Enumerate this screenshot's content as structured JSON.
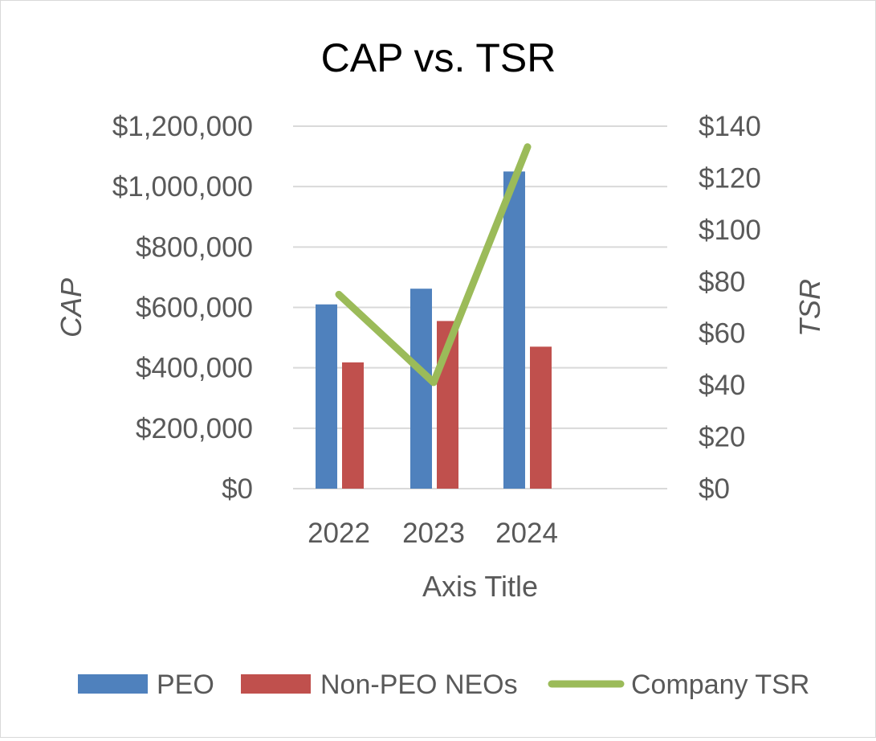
{
  "chart_data": {
    "type": "bar",
    "title": "CAP vs. TSR",
    "categories": [
      "2022",
      "2023",
      "2024"
    ],
    "xlabel": "Axis Title",
    "ylabel": "CAP",
    "y2label": "TSR",
    "ylim": [
      0,
      1200000
    ],
    "y2lim": [
      0,
      140
    ],
    "yticks": [
      "$0",
      "$200,000",
      "$400,000",
      "$600,000",
      "$800,000",
      "$1,000,000",
      "$1,200,000"
    ],
    "y2ticks": [
      "$0",
      "$20",
      "$40",
      "$60",
      "$80",
      "$100",
      "$120",
      "$140"
    ],
    "series": [
      {
        "name": "PEO",
        "type": "bar",
        "axis": "left",
        "color": "#4F81BD",
        "values": [
          610000,
          662000,
          1050000
        ]
      },
      {
        "name": "Non-PEO NEOs",
        "type": "bar",
        "axis": "left",
        "color": "#C0504D",
        "values": [
          418000,
          555000,
          470000
        ]
      },
      {
        "name": "Company TSR",
        "type": "line",
        "axis": "right",
        "color": "#9BBB59",
        "values": [
          75,
          41,
          132
        ]
      }
    ],
    "grid": true,
    "legend": "bottom"
  }
}
